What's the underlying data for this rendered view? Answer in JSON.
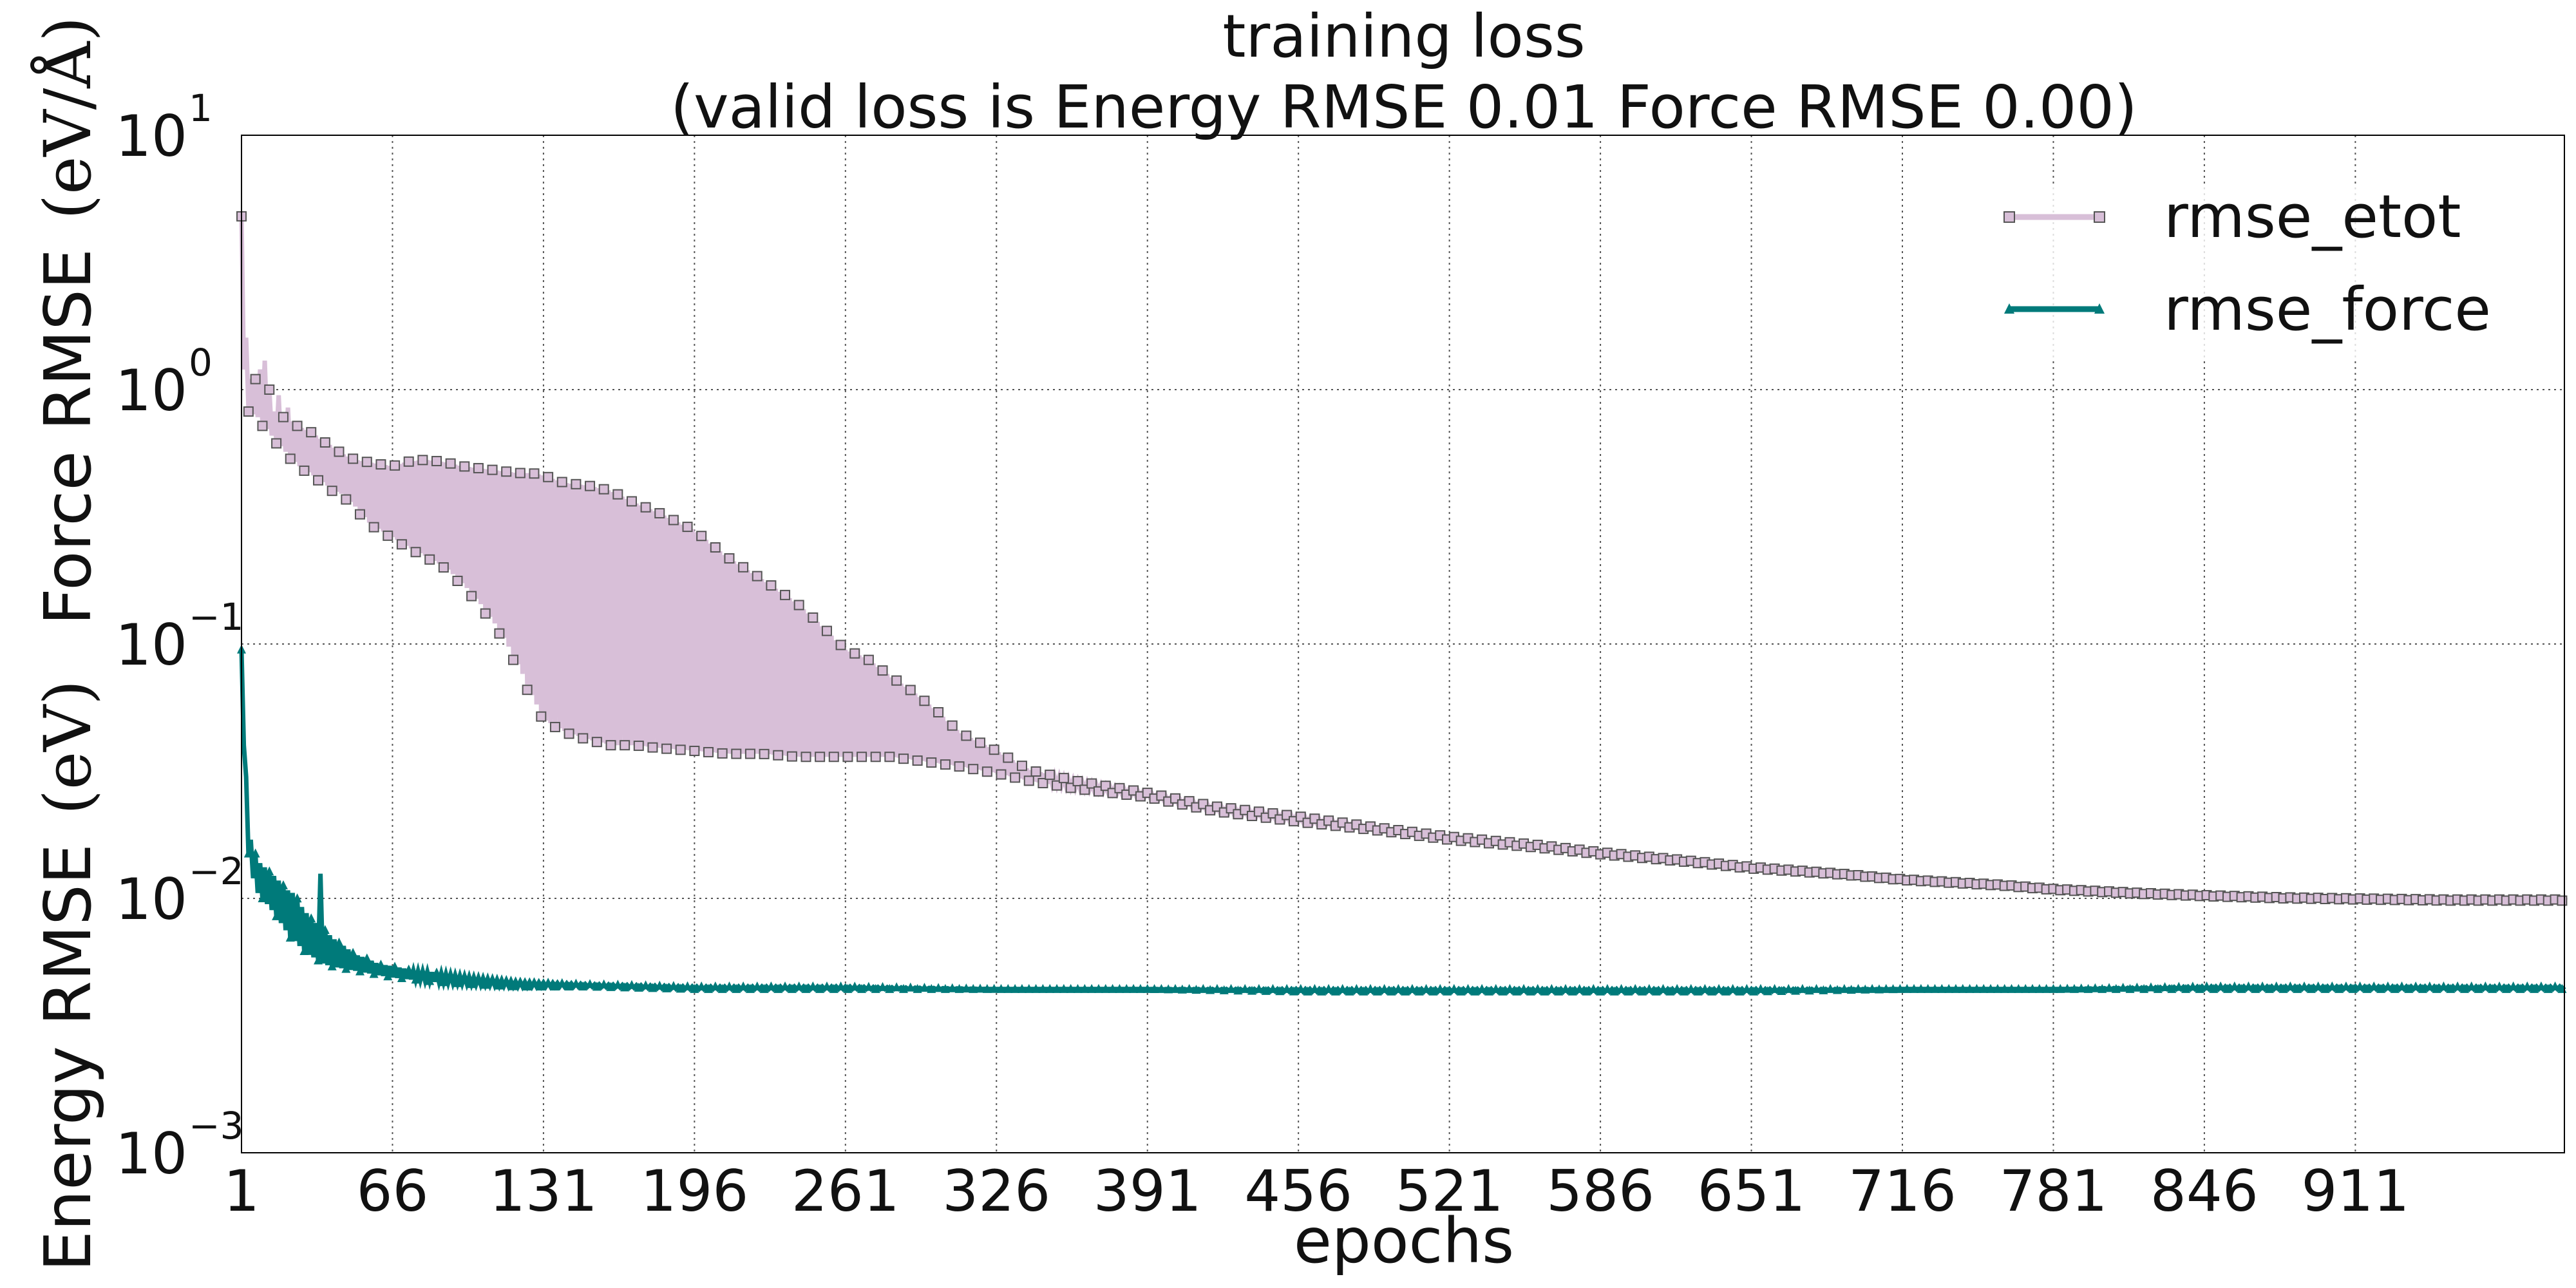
{
  "chart_data": {
    "type": "line",
    "title": "training loss",
    "subtitle": "(valid loss is Energy RMSE 0.01  Force RMSE 0.00)",
    "xlabel": "epochs",
    "ylabel_energy": "Energy RMSE",
    "ylabel_energy_unit": "(eV)",
    "ylabel_force": "Force RMSE",
    "ylabel_force_unit": "(eV/Å)",
    "x_scale": "linear",
    "y_scale": "log",
    "xlim": [
      1,
      1001
    ],
    "ylim": [
      0.001,
      10
    ],
    "x_ticks": [
      1,
      66,
      131,
      196,
      261,
      326,
      391,
      456,
      521,
      586,
      651,
      716,
      781,
      846,
      911
    ],
    "x_tick_labels": [
      "1",
      "66",
      "131",
      "196",
      "261",
      "326",
      "391",
      "456",
      "521",
      "586",
      "651",
      "716",
      "781",
      "846",
      "911"
    ],
    "y_ticks": [
      0.001,
      0.01,
      0.1,
      1,
      10
    ],
    "y_tick_labels": [
      {
        "base": "10",
        "exp": "−3"
      },
      {
        "base": "10",
        "exp": "−2"
      },
      {
        "base": "10",
        "exp": "−1"
      },
      {
        "base": "10",
        "exp": "0"
      },
      {
        "base": "10",
        "exp": "1"
      }
    ],
    "grid": true,
    "legend_position": "top-right",
    "series": [
      {
        "name": "rmse_etot",
        "color": "#d8bfd8",
        "marker": "square",
        "marker_edge": "#555555",
        "epochs": [
          1,
          2,
          3,
          4,
          5,
          6,
          7,
          8,
          9,
          10,
          11,
          12,
          13,
          15,
          17,
          19,
          21,
          23,
          25,
          28,
          31,
          34,
          37,
          40,
          43,
          46,
          50,
          55,
          60,
          66,
          72,
          80,
          88,
          96,
          104,
          112,
          120,
          126,
          131,
          140,
          150,
          160,
          170,
          180,
          196,
          210,
          225,
          240,
          250,
          261,
          270,
          280,
          290,
          300,
          310,
          326,
          340,
          360,
          391,
          420,
          456,
          490,
          521,
          560,
          586,
          620,
          651,
          690,
          716,
          760,
          781,
          820,
          846,
          880,
          911,
          950,
          980,
          1001
        ],
        "upper": [
          4.8,
          2.4,
          1.6,
          1.3,
          1.1,
          1.0,
          1.1,
          0.95,
          1.2,
          0.9,
          1.3,
          0.85,
          1.0,
          0.82,
          0.95,
          0.78,
          0.85,
          0.75,
          0.72,
          0.7,
          0.68,
          0.65,
          0.62,
          0.6,
          0.57,
          0.55,
          0.53,
          0.52,
          0.51,
          0.5,
          0.52,
          0.53,
          0.52,
          0.5,
          0.49,
          0.48,
          0.47,
          0.47,
          0.46,
          0.43,
          0.42,
          0.4,
          0.36,
          0.33,
          0.28,
          0.22,
          0.18,
          0.145,
          0.12,
          0.095,
          0.088,
          0.075,
          0.065,
          0.055,
          0.045,
          0.038,
          0.032,
          0.029,
          0.026,
          0.023,
          0.021,
          0.019,
          0.0175,
          0.0162,
          0.0152,
          0.0142,
          0.0133,
          0.0125,
          0.0119,
          0.0113,
          0.0109,
          0.0105,
          0.0103,
          0.0101,
          0.01,
          0.0099,
          0.0099,
          0.0099
        ],
        "lower": [
          1.2,
          0.9,
          0.85,
          0.82,
          0.8,
          0.8,
          0.78,
          0.76,
          0.74,
          0.72,
          0.7,
          0.68,
          0.66,
          0.63,
          0.6,
          0.57,
          0.55,
          0.52,
          0.5,
          0.48,
          0.46,
          0.44,
          0.42,
          0.4,
          0.39,
          0.37,
          0.34,
          0.3,
          0.28,
          0.26,
          0.24,
          0.22,
          0.2,
          0.17,
          0.14,
          0.11,
          0.08,
          0.06,
          0.05,
          0.045,
          0.042,
          0.04,
          0.04,
          0.039,
          0.038,
          0.037,
          0.037,
          0.036,
          0.036,
          0.036,
          0.036,
          0.036,
          0.035,
          0.034,
          0.033,
          0.031,
          0.029,
          0.027,
          0.025,
          0.022,
          0.02,
          0.0185,
          0.017,
          0.0158,
          0.0149,
          0.014,
          0.0131,
          0.0124,
          0.0118,
          0.0112,
          0.0108,
          0.0104,
          0.0102,
          0.01,
          0.0099,
          0.0098,
          0.0098,
          0.0098
        ]
      },
      {
        "name": "rmse_force",
        "color": "#007a7a",
        "marker": "triangle",
        "epochs": [
          1,
          2,
          3,
          4,
          5,
          6,
          7,
          8,
          10,
          12,
          14,
          16,
          18,
          20,
          22,
          24,
          26,
          28,
          30,
          33,
          35,
          37,
          40,
          45,
          50,
          55,
          60,
          66,
          75,
          85,
          100,
          120,
          150,
          196,
          261,
          326,
          391,
          456,
          521,
          586,
          651,
          716,
          781,
          846,
          911,
          1001
        ],
        "upper": [
          0.095,
          0.06,
          0.03,
          0.022,
          0.017,
          0.016,
          0.015,
          0.014,
          0.0135,
          0.013,
          0.0125,
          0.012,
          0.0115,
          0.011,
          0.0105,
          0.0105,
          0.0095,
          0.009,
          0.0085,
          0.008,
          0.0125,
          0.0075,
          0.007,
          0.0065,
          0.006,
          0.0058,
          0.0055,
          0.0054,
          0.0052,
          0.0051,
          0.0049,
          0.0047,
          0.0046,
          0.0045,
          0.0045,
          0.0044,
          0.0044,
          0.0044,
          0.0044,
          0.0044,
          0.0044,
          0.0044,
          0.0044,
          0.0045,
          0.0045,
          0.0045
        ],
        "lower": [
          0.095,
          0.04,
          0.02,
          0.015,
          0.013,
          0.012,
          0.011,
          0.0105,
          0.01,
          0.0095,
          0.009,
          0.0085,
          0.008,
          0.0075,
          0.007,
          0.0068,
          0.0065,
          0.0062,
          0.006,
          0.0058,
          0.0056,
          0.0055,
          0.0054,
          0.0053,
          0.0052,
          0.0051,
          0.005,
          0.0049,
          0.0048,
          0.0047,
          0.0046,
          0.0045,
          0.0045,
          0.0044,
          0.0044,
          0.0044,
          0.0044,
          0.0043,
          0.0043,
          0.0043,
          0.0043,
          0.0044,
          0.0044,
          0.0044,
          0.0044,
          0.0044
        ]
      }
    ]
  }
}
